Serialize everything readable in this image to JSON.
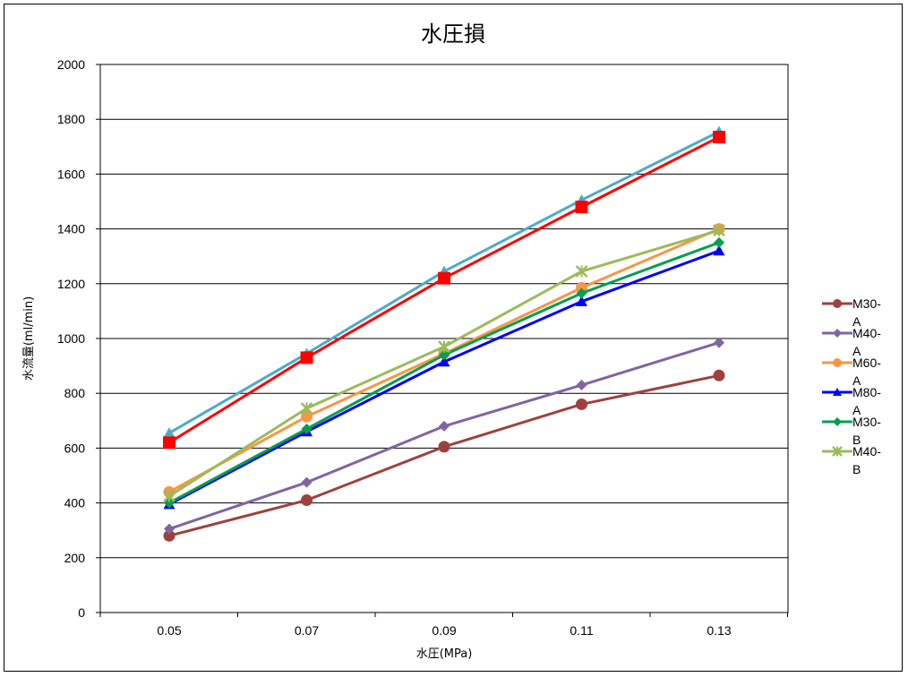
{
  "chart_data": {
    "type": "line",
    "title": "水圧損",
    "xlabel": "水圧(MPa)",
    "ylabel": "水流量(ml/min)",
    "categories": [
      "0.05",
      "0.07",
      "0.09",
      "0.11",
      "0.13"
    ],
    "ylim": [
      0,
      2000
    ],
    "yticks": [
      0,
      200,
      400,
      600,
      800,
      1000,
      1200,
      1400,
      1600,
      1800,
      2000
    ],
    "grid": "horizontal",
    "legend_position": "right",
    "series": [
      {
        "name": "M30-A",
        "name_lines": [
          "M30-",
          "A"
        ],
        "color": "#9e413e",
        "marker": "circle",
        "in_legend": true,
        "values": [
          280,
          410,
          605,
          760,
          865
        ]
      },
      {
        "name": "M40-A",
        "name_lines": [
          "M40-",
          "A"
        ],
        "color": "#8064a2",
        "marker": "diamond",
        "in_legend": true,
        "values": [
          305,
          475,
          680,
          830,
          985
        ]
      },
      {
        "name": "M60-A",
        "name_lines": [
          "M60-",
          "A"
        ],
        "color": "#f79646",
        "marker": "circle",
        "in_legend": true,
        "values": [
          440,
          715,
          945,
          1185,
          1400
        ]
      },
      {
        "name": "M80-A",
        "name_lines": [
          "M80-",
          "A"
        ],
        "color": "#0000ff",
        "marker": "triangle",
        "in_legend": true,
        "values": [
          395,
          660,
          915,
          1135,
          1320
        ]
      },
      {
        "name": "M30-B",
        "name_lines": [
          "M30-",
          "B"
        ],
        "color": "#00a050",
        "marker": "diamond",
        "in_legend": true,
        "values": [
          400,
          670,
          940,
          1165,
          1350
        ]
      },
      {
        "name": "M40-B",
        "name_lines": [
          "M40-",
          "B"
        ],
        "color": "#9bbb59",
        "marker": "x",
        "in_legend": true,
        "values": [
          425,
          745,
          970,
          1245,
          1395
        ]
      },
      {
        "color": "#4bacc6",
        "marker": "triangle",
        "in_legend": false,
        "values": [
          655,
          945,
          1245,
          1505,
          1755
        ]
      },
      {
        "color": "#ff0000",
        "marker": "square",
        "in_legend": false,
        "values": [
          620,
          930,
          1220,
          1480,
          1735
        ]
      }
    ]
  }
}
